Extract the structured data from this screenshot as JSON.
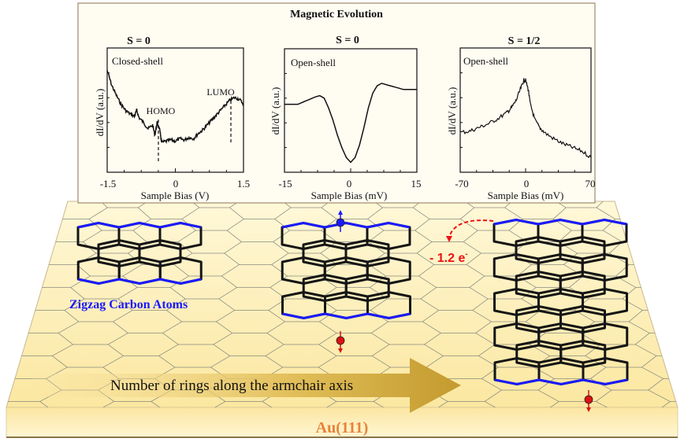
{
  "title": "Magnetic Evolution",
  "substrate_label": "Au(111)",
  "arrow_label": "Number of rings along the armchair axis",
  "zigzag_label": "Zigzag Carbon Atoms",
  "charge_transfer_label": "- 1.2 e",
  "charge_superscript": "-",
  "colors": {
    "panel_bg": "#fffcf2",
    "panel_border": "#a08a6a",
    "substrate_top": "#fff4c8",
    "substrate_front": "#fbe9a8",
    "zigzag_edge": "#1a1aff",
    "bond": "#151515",
    "grid": "#8a8a80",
    "spin_up": "#1a1aff",
    "spin_down": "#dd1111",
    "charge": "#ee1111",
    "substrate_text": "#e8823a",
    "arrow": "#c9a238"
  },
  "chart_data": [
    {
      "type": "line",
      "spin": "S = 0",
      "label": "Closed-shell",
      "xlabel": "Sample Bias (V)",
      "ylabel": "dI/dV (a.u.)",
      "xlim": [
        -1.5,
        1.5
      ],
      "xticks": [
        "-1.5",
        "0",
        "1.5"
      ],
      "annotations": [
        {
          "text": "HOMO",
          "x": -0.45
        },
        {
          "text": "LUMO",
          "x": 1.2
        }
      ],
      "x": [
        -1.5,
        -1.4,
        -1.3,
        -1.2,
        -1.1,
        -1.0,
        -0.9,
        -0.85,
        -0.8,
        -0.7,
        -0.6,
        -0.5,
        -0.45,
        -0.4,
        -0.35,
        -0.3,
        -0.2,
        -0.1,
        0.0,
        0.1,
        0.2,
        0.3,
        0.4,
        0.5,
        0.6,
        0.7,
        0.8,
        0.9,
        1.0,
        1.1,
        1.2,
        1.3,
        1.4,
        1.5
      ],
      "y": [
        0.82,
        0.7,
        0.62,
        0.55,
        0.5,
        0.47,
        0.45,
        0.5,
        0.44,
        0.4,
        0.35,
        0.38,
        0.3,
        0.4,
        0.35,
        0.24,
        0.25,
        0.26,
        0.25,
        0.27,
        0.26,
        0.28,
        0.27,
        0.31,
        0.34,
        0.38,
        0.42,
        0.46,
        0.5,
        0.54,
        0.58,
        0.6,
        0.59,
        0.55
      ]
    },
    {
      "type": "line",
      "spin": "S = 0",
      "label": "Open-shell",
      "xlabel": "Sample Bias (mV)",
      "ylabel": "dI/dV (a.u.)",
      "xlim": [
        -15,
        15
      ],
      "xticks": [
        "-15",
        "0",
        "15"
      ],
      "x": [
        -15,
        -12,
        -10,
        -8,
        -7,
        -6,
        -5,
        -4,
        -3,
        -2,
        -1,
        0,
        1,
        2,
        3,
        4,
        5,
        6,
        7,
        8,
        10,
        12,
        15
      ],
      "y": [
        0.55,
        0.55,
        0.58,
        0.61,
        0.62,
        0.6,
        0.52,
        0.42,
        0.3,
        0.2,
        0.12,
        0.08,
        0.12,
        0.22,
        0.36,
        0.52,
        0.64,
        0.7,
        0.72,
        0.71,
        0.69,
        0.67,
        0.67
      ]
    },
    {
      "type": "line",
      "spin": "S = 1/2",
      "label": "Open-shell",
      "xlabel": "Sample Bias (mV)",
      "ylabel": "dI/dV (a.u.)",
      "xlim": [
        -70,
        70
      ],
      "xticks": [
        "-70",
        "0",
        "70"
      ],
      "x": [
        -70,
        -60,
        -50,
        -40,
        -30,
        -20,
        -15,
        -10,
        -5,
        -2,
        0,
        3,
        5,
        10,
        15,
        20,
        30,
        40,
        50,
        60,
        70
      ],
      "y": [
        0.32,
        0.33,
        0.36,
        0.39,
        0.43,
        0.48,
        0.52,
        0.58,
        0.68,
        0.74,
        0.74,
        0.66,
        0.55,
        0.42,
        0.36,
        0.32,
        0.27,
        0.23,
        0.2,
        0.17,
        0.12
      ]
    }
  ]
}
